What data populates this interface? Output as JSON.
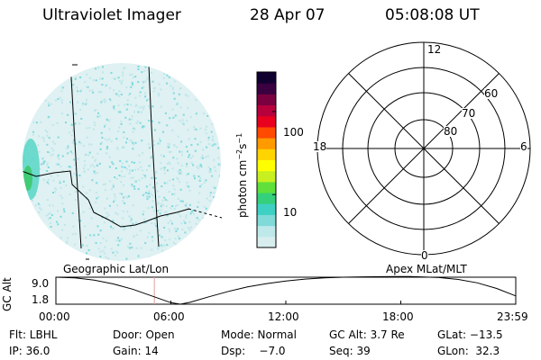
{
  "header": {
    "instrument": "Ultraviolet Imager",
    "date": "28 Apr 07",
    "time": "05:08:08 UT"
  },
  "image_panel": {
    "left_label": "Geographic Lat/Lon",
    "colors": {
      "haze": "#bfe6ea",
      "speckle": "#7fd9dd",
      "bright": "#3cc96a",
      "mid": "#2fd0c8"
    }
  },
  "colorbar": {
    "label_main": "photon cm",
    "label_sup1": "−2",
    "label_mid": "s",
    "label_sup2": "−1",
    "ticks": [
      {
        "value": 100,
        "label": "100"
      },
      {
        "value": 10,
        "label": "10"
      }
    ],
    "range": [
      2.3,
      300
    ],
    "scale": "log",
    "colors_bottom_to_top": [
      "#d8eeee",
      "#bfe8ea",
      "#7fdad8",
      "#3fd0c4",
      "#34d07c",
      "#5fe03a",
      "#c8f020",
      "#ffff00",
      "#ffd400",
      "#ff9a00",
      "#ff4a00",
      "#e8001e",
      "#b8003c",
      "#7a0040",
      "#3a0040",
      "#100030"
    ]
  },
  "polar_plot": {
    "right_label": "Apex  MLat/MLT",
    "mlt_labels": {
      "top": "12",
      "left": "18",
      "right": "6",
      "bottom": "0"
    },
    "lat_labels": [
      "60",
      "70",
      "80"
    ]
  },
  "altitude_plot": {
    "ylabel": "GC Alt",
    "ytick_max": "9.0",
    "ytick_min": "1.8",
    "xticks": [
      "00:00",
      "06:00",
      "12:00",
      "18:00",
      "23:59"
    ],
    "marker_time_hours": 5.14
  },
  "chart_data": {
    "type": "line",
    "x_unit": "hours UT",
    "y_unit": "Re",
    "ylim": [
      1.8,
      9.0
    ],
    "xlim": [
      0,
      24
    ],
    "x": [
      0,
      1,
      2,
      3,
      4,
      5,
      6,
      6.5,
      7,
      8,
      9,
      10,
      11,
      12,
      13,
      14,
      15,
      16,
      17,
      18,
      18.5,
      19,
      20,
      21,
      22,
      23,
      24
    ],
    "y": [
      9.0,
      8.8,
      8.2,
      7.2,
      5.8,
      4.0,
      2.2,
      1.8,
      2.3,
      3.8,
      5.2,
      6.4,
      7.3,
      8.0,
      8.5,
      8.8,
      9.0,
      9.1,
      9.15,
      9.2,
      9.2,
      9.1,
      8.9,
      8.4,
      7.5,
      6.0,
      4.0
    ]
  },
  "footer": {
    "col1": {
      "line1": "Flt: LBHL",
      "line2": "IP: 36.0"
    },
    "col2": {
      "line1": "Door: Open",
      "line2": "Gain: 14"
    },
    "col3": {
      "line1": "Mode: Normal",
      "line2": "Dsp:    −7.0"
    },
    "col4": {
      "line1": "GC Alt: 3.7 Re",
      "line2": "Seq: 39"
    },
    "col5": {
      "line1": "GLat: −13.5",
      "line2": "GLon:  32.3"
    }
  }
}
